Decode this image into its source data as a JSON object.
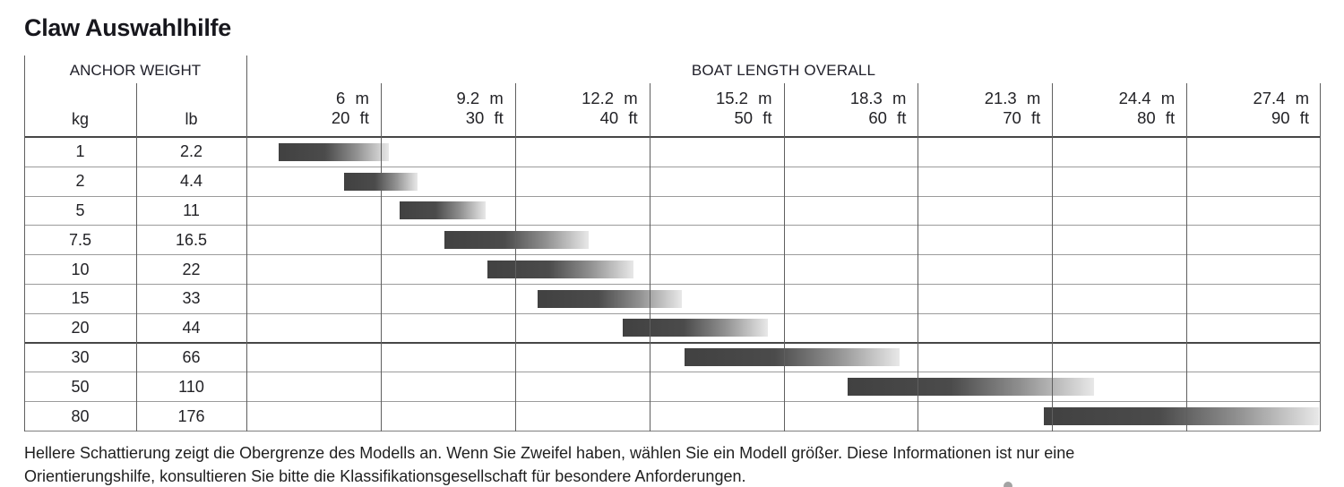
{
  "page": {
    "title": "Claw Auswahlhilfe"
  },
  "table": {
    "anchor_weight_header": "ANCHOR WEIGHT",
    "boat_length_header": "BOAT LENGTH OVERALL",
    "unit_columns": [
      {
        "label": "kg"
      },
      {
        "label": "lb"
      }
    ],
    "boat_columns": [
      {
        "m": "6 m",
        "ft": "20 ft"
      },
      {
        "m": "9.2 m",
        "ft": "30 ft"
      },
      {
        "m": "12.2 m",
        "ft": "40 ft"
      },
      {
        "m": "15.2 m",
        "ft": "50 ft"
      },
      {
        "m": "18.3 m",
        "ft": "60 ft"
      },
      {
        "m": "21.3 m",
        "ft": "70 ft"
      },
      {
        "m": "24.4 m",
        "ft": "80 ft"
      },
      {
        "m": "27.4 m",
        "ft": "90 ft"
      }
    ],
    "rows": [
      {
        "kg": "1",
        "lb": "2.2",
        "bar": {
          "start_pct": 3.0,
          "end_pct": 13.3
        }
      },
      {
        "kg": "2",
        "lb": "4.4",
        "bar": {
          "start_pct": 9.1,
          "end_pct": 15.9
        }
      },
      {
        "kg": "5",
        "lb": "11",
        "bar": {
          "start_pct": 14.3,
          "end_pct": 22.3
        }
      },
      {
        "kg": "7.5",
        "lb": "16.5",
        "bar": {
          "start_pct": 18.4,
          "end_pct": 31.9
        }
      },
      {
        "kg": "10",
        "lb": "22",
        "bar": {
          "start_pct": 22.4,
          "end_pct": 36.0
        }
      },
      {
        "kg": "15",
        "lb": "33",
        "bar": {
          "start_pct": 27.1,
          "end_pct": 40.5
        }
      },
      {
        "kg": "20",
        "lb": "44",
        "bar": {
          "start_pct": 35.0,
          "end_pct": 48.5
        }
      },
      {
        "kg": "30",
        "lb": "66",
        "bar": {
          "start_pct": 40.8,
          "end_pct": 60.8
        }
      },
      {
        "kg": "50",
        "lb": "110",
        "bar": {
          "start_pct": 56.0,
          "end_pct": 78.9
        }
      },
      {
        "kg": "80",
        "lb": "176",
        "bar": {
          "start_pct": 74.2,
          "end_pct": 99.8
        }
      }
    ]
  },
  "footnote": {
    "line1": "Hellere Schattierung zeigt die Obergrenze des Modells an. Wenn Sie Zweifel haben, wählen Sie ein Modell größer. Diese Informationen ist nur eine",
    "line2": "Orientierungshilfe, konsultieren Sie bitte die Klassifikationsgesellschaft für besondere Anforderungen."
  },
  "colors": {
    "bar_dark": "#4b4b4b",
    "bar_light": "#e8e8e8",
    "grid_line": "#9b9b9b",
    "grid_line_dark": "#474747",
    "text": "#222226"
  },
  "chart_data": {
    "type": "bar",
    "orientation": "horizontal-range",
    "title": "Claw Auswahlhilfe",
    "xlabel": "BOAT LENGTH OVERALL",
    "ylabel": "ANCHOR WEIGHT",
    "x_ticks_m": [
      6,
      9.2,
      12.2,
      15.2,
      18.3,
      21.3,
      24.4,
      27.4
    ],
    "x_ticks_ft": [
      20,
      30,
      40,
      50,
      60,
      70,
      80,
      90
    ],
    "x_range_ft": [
      10,
      90
    ],
    "grid": true,
    "series": [
      {
        "anchor_kg": 1,
        "anchor_lb": 2.2,
        "boat_ft": [
          12,
          20.5
        ],
        "boat_m": [
          3.7,
          6.2
        ]
      },
      {
        "anchor_kg": 2,
        "anchor_lb": 4.4,
        "boat_ft": [
          17,
          22.5
        ],
        "boat_m": [
          5.2,
          6.9
        ]
      },
      {
        "anchor_kg": 5,
        "anchor_lb": 11,
        "boat_ft": [
          21,
          27.5
        ],
        "boat_m": [
          6.4,
          8.4
        ]
      },
      {
        "anchor_kg": 7.5,
        "anchor_lb": 16.5,
        "boat_ft": [
          24.5,
          35.5
        ],
        "boat_m": [
          7.5,
          10.8
        ]
      },
      {
        "anchor_kg": 10,
        "anchor_lb": 22,
        "boat_ft": [
          27.5,
          38.5
        ],
        "boat_m": [
          8.4,
          11.7
        ]
      },
      {
        "anchor_kg": 15,
        "anchor_lb": 33,
        "boat_ft": [
          31.5,
          42
        ],
        "boat_m": [
          9.6,
          12.8
        ]
      },
      {
        "anchor_kg": 20,
        "anchor_lb": 44,
        "boat_ft": [
          38,
          48.5
        ],
        "boat_m": [
          11.6,
          14.8
        ]
      },
      {
        "anchor_kg": 30,
        "anchor_lb": 66,
        "boat_ft": [
          42.5,
          58.5
        ],
        "boat_m": [
          13.0,
          17.8
        ]
      },
      {
        "anchor_kg": 50,
        "anchor_lb": 110,
        "boat_ft": [
          55,
          73
        ],
        "boat_m": [
          16.8,
          22.3
        ]
      },
      {
        "anchor_kg": 80,
        "anchor_lb": 176,
        "boat_ft": [
          69.5,
          90
        ],
        "boat_m": [
          21.2,
          27.4
        ]
      }
    ],
    "annotation": "Gradient bars: dark = recommended range start, lighter shading indicates upper limit of the model"
  }
}
